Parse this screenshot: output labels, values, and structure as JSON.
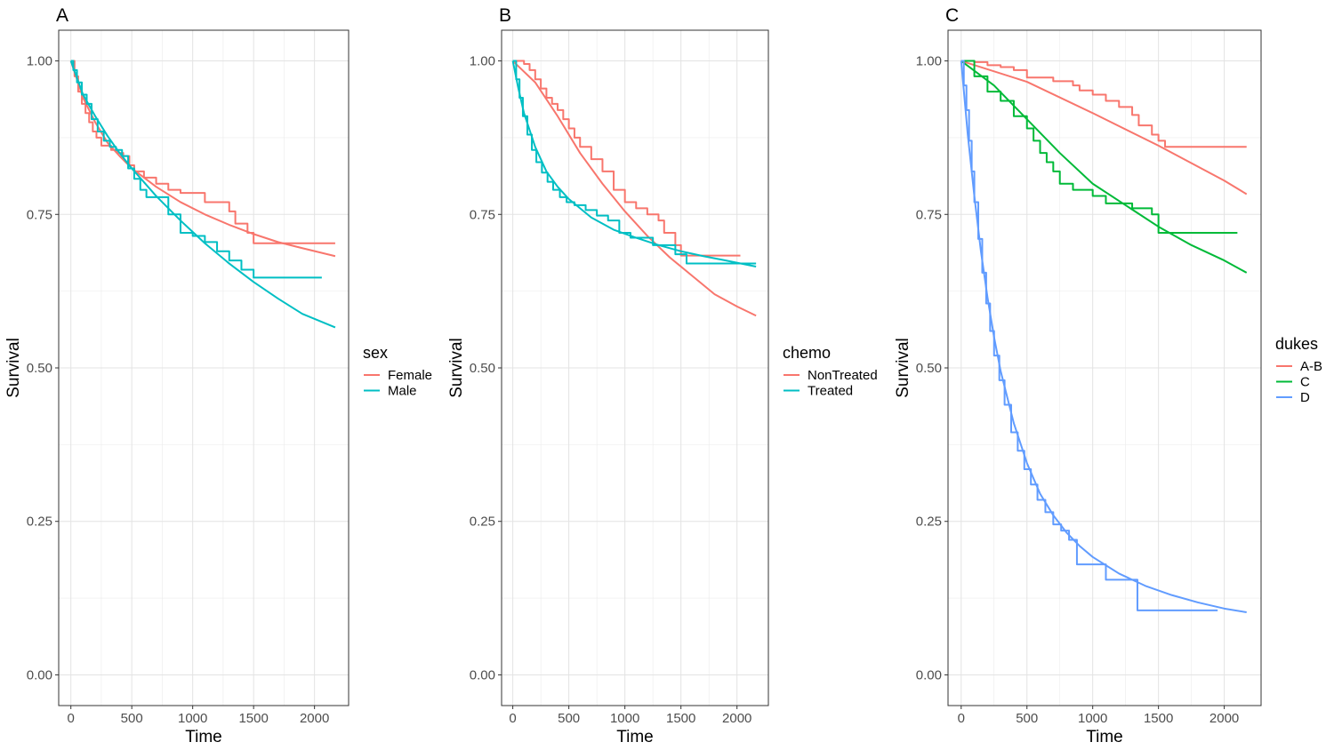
{
  "chart_data": [
    {
      "type": "line",
      "title": "A",
      "xlabel": "Time",
      "ylabel": "Survival",
      "xlim": [
        -100,
        2280
      ],
      "ylim": [
        -0.05,
        1.05
      ],
      "xticks": [
        0,
        500,
        1000,
        1500,
        2000
      ],
      "yticks": [
        0.0,
        0.25,
        0.5,
        0.75,
        1.0
      ],
      "xtick_labels": [
        "0",
        "500",
        "1000",
        "1500",
        "2000"
      ],
      "ytick_labels": [
        "0.00",
        "0.25",
        "0.50",
        "0.75",
        "1.00"
      ],
      "grid": true,
      "legend": {
        "title": "sex",
        "position": "right",
        "entries": [
          {
            "label": "Female",
            "color": "#F8766D"
          },
          {
            "label": "Male",
            "color": "#00BFC4"
          }
        ]
      },
      "series": [
        {
          "name": "Female",
          "kind": "km-step",
          "color": "#F8766D",
          "x": [
            0,
            30,
            60,
            90,
            120,
            150,
            180,
            210,
            250,
            290,
            330,
            380,
            430,
            480,
            520,
            600,
            700,
            800,
            900,
            1000,
            1100,
            1200,
            1300,
            1350,
            1450,
            1500,
            2170
          ],
          "y": [
            1.0,
            0.975,
            0.95,
            0.93,
            0.915,
            0.9,
            0.885,
            0.875,
            0.862,
            0.862,
            0.855,
            0.85,
            0.845,
            0.83,
            0.82,
            0.81,
            0.8,
            0.79,
            0.785,
            0.785,
            0.77,
            0.77,
            0.755,
            0.735,
            0.72,
            0.703,
            0.703
          ]
        },
        {
          "name": "Female",
          "kind": "fitted",
          "color": "#F8766D",
          "x": [
            0,
            100,
            200,
            300,
            400,
            500,
            700,
            900,
            1100,
            1300,
            1500,
            1700,
            1900,
            2170
          ],
          "y": [
            1.0,
            0.94,
            0.9,
            0.867,
            0.845,
            0.825,
            0.795,
            0.77,
            0.75,
            0.733,
            0.718,
            0.705,
            0.695,
            0.682
          ]
        },
        {
          "name": "Male",
          "kind": "km-step",
          "color": "#00BFC4",
          "x": [
            0,
            20,
            50,
            90,
            130,
            170,
            220,
            270,
            320,
            370,
            420,
            470,
            520,
            570,
            620,
            700,
            800,
            900,
            1000,
            1100,
            1200,
            1300,
            1400,
            1500,
            2060
          ],
          "y": [
            1.0,
            0.985,
            0.965,
            0.945,
            0.93,
            0.905,
            0.885,
            0.87,
            0.86,
            0.855,
            0.845,
            0.825,
            0.808,
            0.79,
            0.778,
            0.778,
            0.75,
            0.72,
            0.715,
            0.705,
            0.69,
            0.675,
            0.66,
            0.647,
            0.647
          ]
        },
        {
          "name": "Male",
          "kind": "fitted",
          "color": "#00BFC4",
          "x": [
            0,
            100,
            200,
            300,
            400,
            500,
            700,
            900,
            1100,
            1300,
            1500,
            1700,
            1900,
            2170
          ],
          "y": [
            1.0,
            0.945,
            0.91,
            0.878,
            0.85,
            0.825,
            0.78,
            0.74,
            0.703,
            0.67,
            0.64,
            0.613,
            0.588,
            0.566
          ]
        }
      ]
    },
    {
      "type": "line",
      "title": "B",
      "xlabel": "Time",
      "ylabel": "Survival",
      "xlim": [
        -100,
        2280
      ],
      "ylim": [
        -0.05,
        1.05
      ],
      "xticks": [
        0,
        500,
        1000,
        1500,
        2000
      ],
      "yticks": [
        0.0,
        0.25,
        0.5,
        0.75,
        1.0
      ],
      "xtick_labels": [
        "0",
        "500",
        "1000",
        "1500",
        "2000"
      ],
      "ytick_labels": [
        "0.00",
        "0.25",
        "0.50",
        "0.75",
        "1.00"
      ],
      "grid": true,
      "legend": {
        "title": "chemo",
        "position": "right",
        "entries": [
          {
            "label": "NonTreated",
            "color": "#F8766D"
          },
          {
            "label": "Treated",
            "color": "#00BFC4"
          }
        ]
      },
      "series": [
        {
          "name": "NonTreated",
          "kind": "km-step",
          "color": "#F8766D",
          "x": [
            0,
            50,
            100,
            150,
            200,
            250,
            300,
            350,
            400,
            450,
            500,
            550,
            600,
            700,
            800,
            900,
            1000,
            1100,
            1200,
            1300,
            1350,
            1450,
            1500,
            2030
          ],
          "y": [
            1.0,
            1.0,
            0.995,
            0.985,
            0.97,
            0.955,
            0.94,
            0.93,
            0.92,
            0.905,
            0.89,
            0.875,
            0.86,
            0.84,
            0.82,
            0.79,
            0.77,
            0.76,
            0.75,
            0.74,
            0.72,
            0.7,
            0.683,
            0.683
          ]
        },
        {
          "name": "NonTreated",
          "kind": "fitted",
          "color": "#F8766D",
          "x": [
            0,
            200,
            400,
            600,
            800,
            1000,
            1200,
            1400,
            1600,
            1800,
            2000,
            2170
          ],
          "y": [
            1.0,
            0.965,
            0.91,
            0.85,
            0.8,
            0.755,
            0.715,
            0.68,
            0.65,
            0.62,
            0.6,
            0.585
          ]
        },
        {
          "name": "Treated",
          "kind": "km-step",
          "color": "#00BFC4",
          "x": [
            0,
            30,
            60,
            90,
            130,
            170,
            210,
            260,
            310,
            360,
            420,
            480,
            550,
            650,
            750,
            850,
            950,
            1050,
            1150,
            1250,
            1350,
            1450,
            1550,
            2170
          ],
          "y": [
            1.0,
            0.97,
            0.94,
            0.91,
            0.88,
            0.855,
            0.835,
            0.818,
            0.803,
            0.79,
            0.778,
            0.77,
            0.765,
            0.757,
            0.748,
            0.74,
            0.72,
            0.712,
            0.712,
            0.7,
            0.7,
            0.685,
            0.67,
            0.67
          ]
        },
        {
          "name": "Treated",
          "kind": "fitted",
          "color": "#00BFC4",
          "x": [
            0,
            50,
            100,
            200,
            300,
            400,
            500,
            700,
            900,
            1100,
            1300,
            1500,
            1700,
            1900,
            2170
          ],
          "y": [
            1.0,
            0.955,
            0.915,
            0.86,
            0.82,
            0.795,
            0.775,
            0.745,
            0.725,
            0.712,
            0.7,
            0.69,
            0.682,
            0.675,
            0.665
          ]
        }
      ]
    },
    {
      "type": "line",
      "title": "C",
      "xlabel": "Time",
      "ylabel": "Survival",
      "xlim": [
        -100,
        2280
      ],
      "ylim": [
        -0.05,
        1.05
      ],
      "xticks": [
        0,
        500,
        1000,
        1500,
        2000
      ],
      "yticks": [
        0.0,
        0.25,
        0.5,
        0.75,
        1.0
      ],
      "xtick_labels": [
        "0",
        "500",
        "1000",
        "1500",
        "2000"
      ],
      "ytick_labels": [
        "0.00",
        "0.25",
        "0.50",
        "0.75",
        "1.00"
      ],
      "grid": true,
      "legend": {
        "title": "dukes",
        "position": "right",
        "entries": [
          {
            "label": "A-B",
            "color": "#F8766D"
          },
          {
            "label": "C",
            "color": "#00BA38"
          },
          {
            "label": "D",
            "color": "#619CFF"
          }
        ]
      },
      "series": [
        {
          "name": "A-B",
          "kind": "km-step",
          "color": "#F8766D",
          "x": [
            0,
            100,
            200,
            300,
            400,
            500,
            700,
            850,
            900,
            1000,
            1100,
            1200,
            1300,
            1350,
            1450,
            1500,
            1550,
            1600,
            2170
          ],
          "y": [
            1.0,
            0.998,
            0.993,
            0.99,
            0.985,
            0.973,
            0.967,
            0.96,
            0.952,
            0.945,
            0.935,
            0.925,
            0.912,
            0.895,
            0.88,
            0.87,
            0.86,
            0.86,
            0.86
          ]
        },
        {
          "name": "A-B",
          "kind": "fitted",
          "color": "#F8766D",
          "x": [
            0,
            500,
            1000,
            1500,
            2000,
            2170
          ],
          "y": [
            1.0,
            0.966,
            0.915,
            0.862,
            0.805,
            0.783
          ]
        },
        {
          "name": "C",
          "kind": "km-step",
          "color": "#00BA38",
          "x": [
            0,
            100,
            200,
            300,
            400,
            500,
            550,
            600,
            650,
            700,
            750,
            850,
            1000,
            1100,
            1300,
            1450,
            1500,
            2100
          ],
          "y": [
            1.0,
            0.975,
            0.95,
            0.935,
            0.91,
            0.89,
            0.87,
            0.85,
            0.835,
            0.82,
            0.8,
            0.79,
            0.78,
            0.768,
            0.76,
            0.75,
            0.72,
            0.72
          ]
        },
        {
          "name": "C",
          "kind": "fitted",
          "color": "#00BA38",
          "x": [
            0,
            250,
            500,
            750,
            1000,
            1250,
            1500,
            1750,
            2000,
            2170
          ],
          "y": [
            1.0,
            0.96,
            0.905,
            0.85,
            0.8,
            0.765,
            0.73,
            0.7,
            0.675,
            0.655
          ]
        },
        {
          "name": "D",
          "kind": "km-step",
          "color": "#619CFF",
          "x": [
            0,
            20,
            40,
            60,
            80,
            100,
            130,
            160,
            190,
            220,
            250,
            290,
            330,
            380,
            430,
            480,
            530,
            580,
            640,
            700,
            760,
            820,
            880,
            1000,
            1100,
            1340,
            1950
          ],
          "y": [
            1.0,
            0.96,
            0.92,
            0.87,
            0.82,
            0.77,
            0.71,
            0.655,
            0.605,
            0.56,
            0.52,
            0.48,
            0.44,
            0.395,
            0.365,
            0.335,
            0.31,
            0.285,
            0.265,
            0.245,
            0.235,
            0.22,
            0.18,
            0.18,
            0.155,
            0.105,
            0.105
          ]
        },
        {
          "name": "D",
          "kind": "fitted",
          "color": "#619CFF",
          "x": [
            0,
            50,
            100,
            150,
            200,
            250,
            300,
            400,
            500,
            600,
            700,
            800,
            900,
            1000,
            1200,
            1400,
            1600,
            1800,
            2000,
            2170
          ],
          "y": [
            1.0,
            0.88,
            0.78,
            0.69,
            0.615,
            0.55,
            0.495,
            0.41,
            0.345,
            0.295,
            0.26,
            0.232,
            0.21,
            0.192,
            0.165,
            0.145,
            0.13,
            0.118,
            0.108,
            0.102
          ]
        }
      ]
    }
  ]
}
